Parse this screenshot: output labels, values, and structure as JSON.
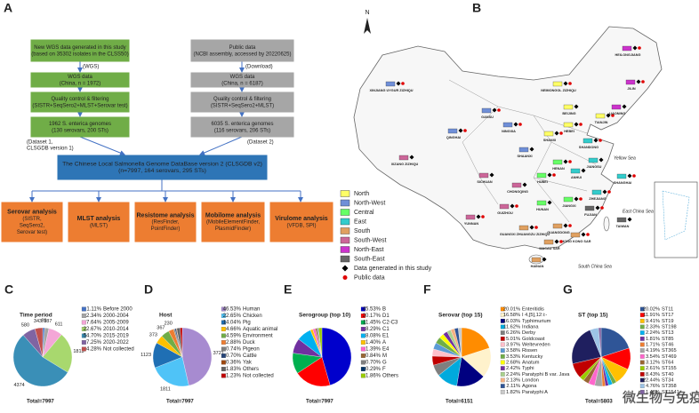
{
  "flowchart": {
    "label": "A",
    "nodes": [
      {
        "lines": [
          "New WGS data generated in this study",
          "(based on 35302 isolates in the CLSS50)"
        ]
      },
      {
        "lines": [
          "WGS data",
          "(China, n = 1972)"
        ]
      },
      {
        "lines": [
          "Quality control & filtering",
          "(SISTR+SeqSero2+MLST+Serovar test)"
        ]
      },
      {
        "lines": [
          "1962 S. enterica genomes",
          "(130 serovars, 200 STs)"
        ]
      },
      {
        "lines": [
          "Public data",
          "(NCBI assembly, accessed by 20220625)"
        ]
      },
      {
        "lines": [
          "WGS data",
          "(China, n = 6187)"
        ]
      },
      {
        "lines": [
          "Quality control & filtering",
          "(SISTR+SeqSero2+MLST)"
        ]
      },
      {
        "lines": [
          "6035 S. enterica genomes",
          "(116 serovars, 206 STs)"
        ]
      },
      {
        "lines": [
          "The Chinese Local Salmonella Genome DataBase version 2 (CLSGDB v2)",
          "(n=7997, 164 serovars, 295 STs)"
        ]
      },
      {
        "lines": [
          "Serovar analysis",
          "(SISTR,",
          "SeqSero2,",
          "Serovar test)"
        ]
      },
      {
        "lines": [
          "MLST analysis",
          "(MLST)"
        ]
      },
      {
        "lines": [
          "Resistome analysis",
          "(ResFinder,",
          "PointFinder)"
        ]
      },
      {
        "lines": [
          "Mobilome analysis",
          "(MobileElementFinder,",
          "PlasmidFinder)"
        ]
      },
      {
        "lines": [
          "Virulome analysis",
          "(VFDB, SPI)"
        ]
      }
    ],
    "notes": [
      {
        "lines": [
          "(WGS)"
        ]
      },
      {
        "lines": [
          "(Dataset 1,",
          "CLSGDB version 1)"
        ]
      },
      {
        "lines": [
          "(Download)"
        ]
      },
      {
        "lines": [
          "(Dataset 2)"
        ]
      }
    ]
  },
  "map": {
    "label": "B",
    "north": "N",
    "legend": [
      {
        "name": "North",
        "color": "#ffff66"
      },
      {
        "name": "North-West",
        "color": "#6f8fd8"
      },
      {
        "name": "Central",
        "color": "#66ff66"
      },
      {
        "name": "East",
        "color": "#33cccc"
      },
      {
        "name": "South",
        "color": "#e0a060"
      },
      {
        "name": "South-West",
        "color": "#cc6699"
      },
      {
        "name": "North-East",
        "color": "#cc33cc"
      },
      {
        "name": "South-East",
        "color": "#666666"
      }
    ],
    "study": "Data generated in this study",
    "public": "Public data",
    "provinces": [
      "XINJIANG UYGUR ZIZHIQU",
      "XIZANG ZIZHIQU",
      "QINGHAI",
      "GANSU",
      "SICHUAN",
      "YUNNAN",
      "GUIZHOU",
      "CHONGQING",
      "GUANGXI ZHUANGZU ZIZHIQU",
      "GUANGDONG",
      "HAINAN",
      "HONG KONG SAR",
      "MACAU SAR",
      "TAIWAN",
      "FUJIAN",
      "JIANGXI",
      "HUNAN",
      "HUBEI",
      "HENAN",
      "ANHUI",
      "ZHEJIANG",
      "SHANGHAI",
      "JIANGSU",
      "SHANDONG",
      "HEBEI",
      "BEIJING",
      "TIANJIN",
      "SHANXI",
      "SHAANXI",
      "NINGXIA",
      "NEIMONGOL ZIZHIQU",
      "LIAONING",
      "JILIN",
      "HEILONGJIANG"
    ],
    "seas": [
      "Yellow Sea",
      "East China Sea",
      "South China Sea"
    ]
  },
  "chart_data": [
    {
      "type": "pie",
      "label": "C",
      "title": "Time period",
      "total": "Total=7997",
      "categories": [
        "Before 2000",
        "2000-2004",
        "2005-2009",
        "2010-2014",
        "2015-2019",
        "2020-2022",
        "Not collected"
      ],
      "values": [
        1.11,
        2.34,
        7.64,
        22.67,
        54.7,
        7.25,
        4.28
      ],
      "value_labels": [
        "1.11%",
        "2.34%",
        "7.64%",
        "22.67%",
        "54.70%",
        "7.25%",
        "4.28%"
      ],
      "counts": [
        89,
        187,
        611,
        1813,
        4374,
        580,
        343
      ],
      "colors": [
        "#4472c4",
        "#a5a5a5",
        "#f4a6d7",
        "#a8d86e",
        "#3a8fb7",
        "#8064a2",
        "#c0504d"
      ]
    },
    {
      "type": "pie",
      "label": "D",
      "title": "Host",
      "total": "Total=7997",
      "categories": [
        "Human",
        "Chicken",
        "Pig",
        "Aquatic animal",
        "Environment",
        "Duck",
        "Pigeon",
        "Cattle",
        "Yak",
        "Others",
        "Not collected"
      ],
      "values": [
        46.53,
        22.65,
        14.04,
        4.66,
        4.59,
        2.88,
        0.74,
        0.7,
        0.36,
        1.83,
        1.23
      ],
      "value_labels": [
        "46.53%",
        "22.65%",
        "14.04%",
        "4.66%",
        "4.59%",
        "2.88%",
        "0.74%",
        "0.70%",
        "0.36%",
        "1.83%",
        "1.23%"
      ],
      "counts": [
        3721,
        1811,
        1123,
        373,
        367,
        230,
        null,
        null,
        null,
        null,
        null
      ],
      "colors": [
        "#a78bd0",
        "#4fc3f7",
        "#1f6fb4",
        "#ffc000",
        "#70ad47",
        "#ed7d31",
        "#7f7f7f",
        "#264478",
        "#9e480e",
        "#636363",
        "#c00000"
      ]
    },
    {
      "type": "pie",
      "label": "E",
      "title": "Serogroup (top 10)",
      "total": "Total=7997",
      "categories": [
        "B",
        "D1",
        "C2-C3",
        "C1",
        "E1",
        "A",
        "E4",
        "M",
        "G",
        "F",
        "Others"
      ],
      "values": [
        45.53,
        20.17,
        11.45,
        8.29,
        8.08,
        1.4,
        1.39,
        0.84,
        0.7,
        0.29,
        1.86
      ],
      "value_labels": [
        "45.53%",
        "20.17%",
        "11.45%",
        "8.29%",
        "8.08%",
        "1.40%",
        "1.39%",
        "0.84%",
        "0.70%",
        "0.29%",
        "1.86%"
      ],
      "colors": [
        "#0000cc",
        "#ff0000",
        "#00b050",
        "#7030a0",
        "#00b0f0",
        "#ffc000",
        "#ff66cc",
        "#996633",
        "#808080",
        "#003366",
        "#99cc00"
      ]
    },
    {
      "type": "pie",
      "label": "F",
      "title": "Serovar (top 15)",
      "total": "Total=6151",
      "categories": [
        "Enteritidis",
        "I 4,[5],12:i:-",
        "Typhimurium",
        "Indiana",
        "Derby",
        "Goldcoast",
        "Weltevreden",
        "Rissen",
        "Kentucky",
        "Anatum",
        "Typhi",
        "Paratyphi B var. Java",
        "London",
        "Agona",
        "Paratyphi A"
      ],
      "values": [
        20.01,
        16.58,
        16.03,
        11.62,
        6.26,
        5.01,
        3.97,
        3.58,
        3.53,
        2.68,
        2.42,
        2.24,
        2.13,
        2.11,
        1.82
      ],
      "value_labels": [
        "20.01%",
        "16.58%",
        "16.03%",
        "11.62%",
        "6.26%",
        "5.01%",
        "3.97%",
        "3.58%",
        "3.53%",
        "2.68%",
        "2.42%",
        "2.24%",
        "2.13%",
        "2.11%",
        "1.82%"
      ],
      "colors": [
        "#ff8c00",
        "#fff2cc",
        "#000080",
        "#00aadd",
        "#7f7f7f",
        "#c00000",
        "#ffc0cb",
        "#5b9bd5",
        "#70ad47",
        "#ffff00",
        "#7030a0",
        "#a9d18e",
        "#f4b183",
        "#2f5597",
        "#c9c9c9"
      ]
    },
    {
      "type": "pie",
      "label": "G",
      "title": "ST (top 15)",
      "total": "Total=5803",
      "categories": [
        "ST11",
        "ST17",
        "ST19",
        "ST198",
        "ST13",
        "ST85",
        "ST46",
        "ST365",
        "ST469",
        "ST64",
        "ST155",
        "ST40",
        "ST34",
        "ST358",
        "ST1541"
      ],
      "values": [
        20.02,
        11.91,
        9.41,
        2.33,
        2.24,
        1.81,
        1.71,
        4.19,
        3.54,
        3.12,
        2.61,
        8.43,
        22.44,
        4.76,
        1.48
      ],
      "value_labels": [
        "20.02%",
        "11.91%",
        "9.41%",
        "2.33%",
        "2.24%",
        "1.81%",
        "1.71%",
        "4.19%",
        "3.54%",
        "3.12%",
        "2.61%",
        "8.43%",
        "22.44%",
        "4.76%",
        "1.48%"
      ],
      "colors": [
        "#2f5597",
        "#ff0000",
        "#ffc000",
        "#70ad47",
        "#00b0f0",
        "#7030a0",
        "#ed7d31",
        "#a5a5a5",
        "#ff66cc",
        "#996633",
        "#99cc00",
        "#c00000",
        "#1f1f5f",
        "#9dc3e6",
        "#8064a2"
      ]
    }
  ],
  "watermark": "微生物与免疫"
}
